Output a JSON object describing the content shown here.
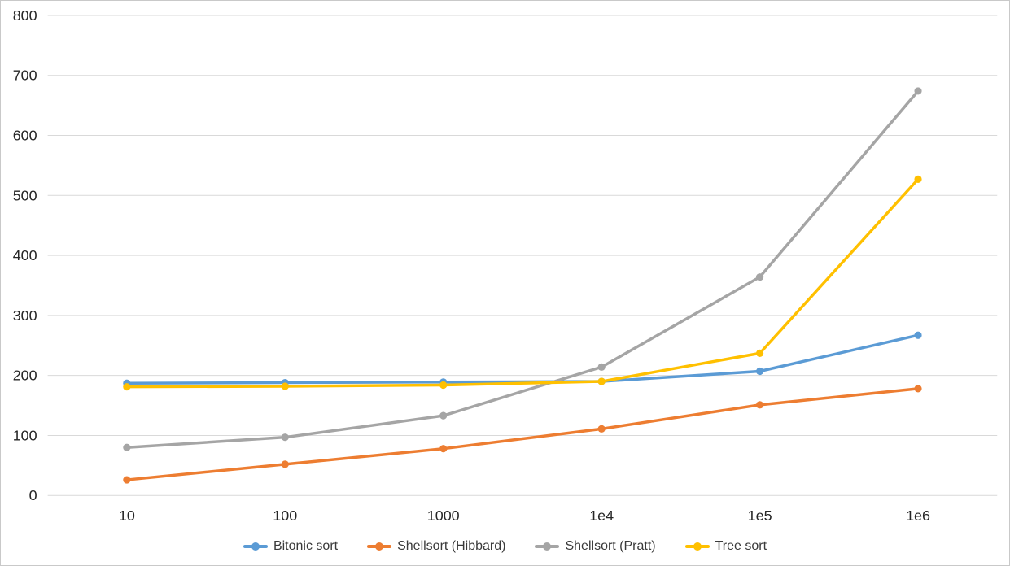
{
  "chart_data": {
    "type": "line",
    "categories": [
      "10",
      "100",
      "1000",
      "1e4",
      "1e5",
      "1e6"
    ],
    "series": [
      {
        "name": "Bitonic sort",
        "color": "#5B9BD5",
        "values": [
          187,
          188,
          189,
          190,
          207,
          267
        ]
      },
      {
        "name": "Shellsort (Hibbard)",
        "color": "#ED7D31",
        "values": [
          26,
          52,
          78,
          111,
          151,
          178
        ]
      },
      {
        "name": "Shellsort (Pratt)",
        "color": "#A5A5A5",
        "values": [
          80,
          97,
          133,
          214,
          364,
          674
        ]
      },
      {
        "name": "Tree sort",
        "color": "#FFC000",
        "values": [
          181,
          182,
          184,
          190,
          237,
          527
        ]
      }
    ],
    "ylim": [
      0,
      800
    ],
    "yticks": [
      0,
      100,
      200,
      300,
      400,
      500,
      600,
      700,
      800
    ],
    "grid": true,
    "legend_position": "bottom",
    "gridline_color": "#D9D9D9",
    "tick_text_color": "#262626",
    "marker_style": "circle"
  }
}
